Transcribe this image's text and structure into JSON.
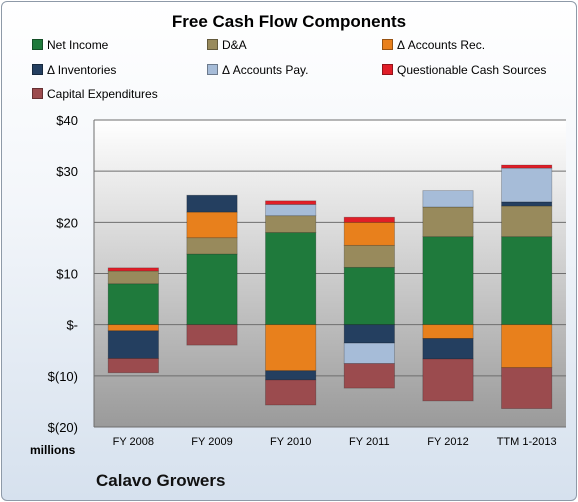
{
  "chart_data": {
    "type": "bar",
    "stacked": true,
    "title": "Free Cash Flow Components",
    "categories": [
      "FY 2008",
      "FY 2009",
      "FY 2010",
      "FY 2011",
      "FY 2012",
      "TTM 1-2013"
    ],
    "ylim": [
      -20,
      40
    ],
    "yticks": [
      40,
      30,
      20,
      10,
      0,
      -10,
      -20
    ],
    "ytick_labels": [
      "$40",
      "$30",
      "$20",
      "$10",
      "$-",
      "$(10)",
      "$(20)"
    ],
    "units_label": "millions",
    "company": "Calavo Growers",
    "grid": true,
    "legend_position": "top",
    "series": [
      {
        "name": "Net Income",
        "color": "#1f7a3c",
        "values": [
          8.0,
          13.8,
          18.0,
          11.2,
          17.2,
          17.2
        ]
      },
      {
        "name": "D&A",
        "color": "#988a5c",
        "values": [
          2.5,
          3.2,
          3.3,
          4.3,
          5.8,
          6.0
        ]
      },
      {
        "name": "Δ Accounts Rec.",
        "color": "#e8801c",
        "values": [
          -1.2,
          5.0,
          -9.0,
          4.5,
          -2.7,
          -8.4
        ]
      },
      {
        "name": "Δ Inventories",
        "color": "#243f60",
        "values": [
          -5.4,
          3.3,
          -1.8,
          -3.6,
          -4.0,
          0.8
        ]
      },
      {
        "name": "Δ Accounts Pay.",
        "color": "#a6bcd8",
        "values": [
          0,
          0,
          2.2,
          -4.0,
          3.2,
          6.6
        ]
      },
      {
        "name": "Questionable Cash Sources",
        "color": "#e01e28",
        "values": [
          0.6,
          0,
          0.7,
          1.0,
          0,
          0.6
        ]
      },
      {
        "name": "Capital Expenditures",
        "color": "#9b4b4e",
        "values": [
          -2.8,
          -4.0,
          -4.9,
          -4.8,
          -8.2,
          -8.0
        ]
      }
    ]
  }
}
